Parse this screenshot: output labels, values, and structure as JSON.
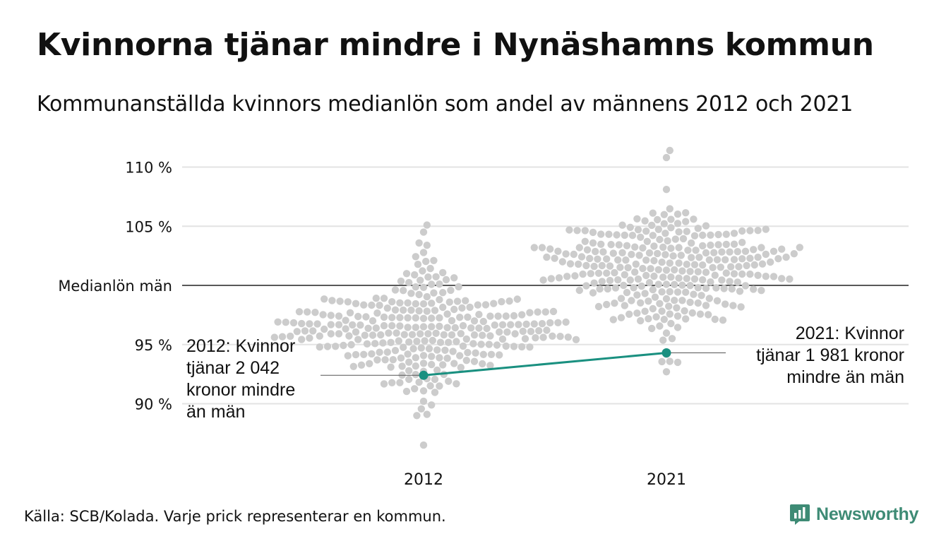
{
  "chart_data": {
    "type": "scatter",
    "subtype": "beeswarm",
    "title": "Kvinnorna tjänar mindre i Nynäshamns kommun",
    "subtitle": "Kommunanställda kvinnors medianlön som andel av männens 2012 och 2021",
    "xlabel": "",
    "ylabel": "",
    "categories": [
      "2012",
      "2021"
    ],
    "ylim": [
      87,
      111.5
    ],
    "y_ticks": [
      {
        "value": 90,
        "label": "90 %"
      },
      {
        "value": 95,
        "label": "95 %"
      },
      {
        "value": 100,
        "label": "Medianlön män"
      },
      {
        "value": 105,
        "label": "105 %"
      },
      {
        "value": 110,
        "label": "110 %"
      }
    ],
    "reference_line": {
      "value": 100,
      "label": "Medianlön män"
    },
    "grid": true,
    "swarm": [
      {
        "category": "2012",
        "dot_color": "#cccccc",
        "approx_count": 290,
        "min": 86.5,
        "max": 105.1,
        "center": 96.5,
        "spread": 2.5,
        "outliers": [
          86.5,
          89.0,
          89.1,
          104.5,
          105.1
        ]
      },
      {
        "category": "2021",
        "dot_color": "#cccccc",
        "approx_count": 290,
        "min": 92.7,
        "max": 111.4,
        "center": 101.3,
        "spread": 2.5,
        "outliers": [
          92.7,
          93.5,
          110.8,
          111.4
        ]
      }
    ],
    "highlight": {
      "name": "Nynäshamn",
      "color": "#1a9080",
      "points": [
        {
          "x": "2012",
          "y": 92.4
        },
        {
          "x": "2021",
          "y": 94.3
        }
      ]
    },
    "annotations": [
      {
        "x": "2012",
        "y": 92.4,
        "side": "left",
        "lines": [
          "2012: Kvinnor",
          "tjänar 2 042",
          "kronor mindre",
          "än män"
        ]
      },
      {
        "x": "2021",
        "y": 94.3,
        "side": "right",
        "lines": [
          "2021: Kvinnor",
          "tjänar 1 981 kronor",
          "mindre än män"
        ]
      }
    ]
  },
  "footer": {
    "source": "Källa: SCB/Kolada. Varje prick representerar en kommun.",
    "brand": "Newsworthy",
    "brand_color": "#3e8b75"
  }
}
